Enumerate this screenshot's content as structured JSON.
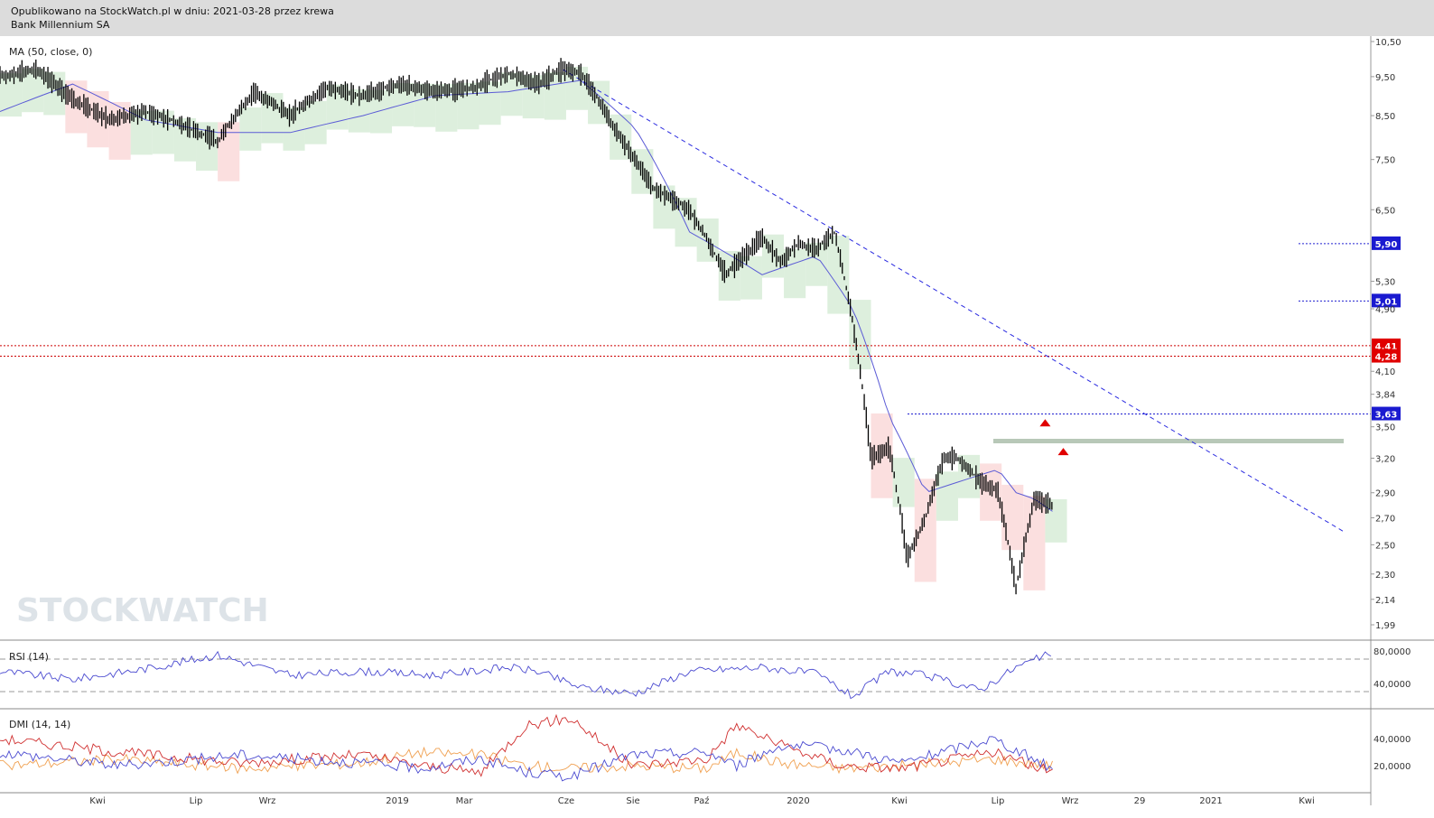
{
  "header": {
    "line1": "Opublikowano na StockWatch.pl w dniu: 2021-03-28 przez krewa",
    "line2": "Bank Millennium SA"
  },
  "watermark": "STOCKWATCH",
  "colors": {
    "price": "#000000",
    "ma": "#5b5bd6",
    "trendline": "#2a2ae0",
    "support": "#2020d0",
    "resistance": "#cc0000",
    "cloud_bull": "#cfe8cf",
    "cloud_bear": "#f9d2d2",
    "rsi": "#4a4ad0",
    "dmi_plus": "#f0a050",
    "dmi_minus": "#d03030",
    "adx": "#4a4ad0"
  },
  "chart_data": [
    {
      "type": "line",
      "panel": "price",
      "indicator_label": "MA (50, close, 0)",
      "x_labels": [
        "Kwi",
        "Lip",
        "Wrz",
        "2019",
        "Mar",
        "Cze",
        "Sie",
        "Paź",
        "2020",
        "Kwi",
        "Lip",
        "Wrz",
        "29",
        "2021",
        "Kwi"
      ],
      "y_ticks": [
        "10,50",
        "9,50",
        "8,50",
        "7,50",
        "6,50",
        "5,30",
        "4,90",
        "4,10",
        "3,84",
        "3,50",
        "3,20",
        "2,90",
        "2,70",
        "2,50",
        "2,30",
        "2,14",
        "1,99"
      ],
      "price_x": [
        0,
        10,
        20,
        30,
        40,
        50,
        60,
        70,
        80,
        90,
        100,
        110,
        120,
        130,
        140,
        148,
        155,
        160,
        170,
        180,
        190,
        200,
        210,
        215,
        220,
        225,
        230,
        235,
        240,
        245,
        250,
        255,
        260,
        264,
        270,
        275,
        280,
        285,
        290
      ],
      "price": [
        9.5,
        9.7,
        8.9,
        8.4,
        8.6,
        8.3,
        7.9,
        9.1,
        8.5,
        9.2,
        9.0,
        9.3,
        9.1,
        9.2,
        9.6,
        9.3,
        9.7,
        9.6,
        8.1,
        6.9,
        6.5,
        5.4,
        6.0,
        5.6,
        5.9,
        5.8,
        6.1,
        4.7,
        3.2,
        3.3,
        2.4,
        2.7,
        3.2,
        3.2,
        3.0,
        2.9,
        2.2,
        2.85,
        2.8
      ],
      "ma_x": [
        0,
        20,
        40,
        60,
        80,
        100,
        120,
        140,
        160,
        175,
        190,
        210,
        225,
        235,
        245,
        255,
        265,
        275,
        280,
        285,
        290
      ],
      "ma": [
        8.6,
        9.3,
        8.4,
        8.1,
        8.1,
        8.5,
        9.0,
        9.1,
        9.4,
        8.2,
        6.1,
        5.4,
        5.7,
        4.9,
        3.6,
        2.9,
        3.0,
        3.1,
        2.9,
        2.85,
        2.75
      ],
      "trendline": {
        "from": {
          "x": 155,
          "y": 9.7
        },
        "to": {
          "x": 370,
          "y": 2.6
        }
      },
      "horizontal_levels": [
        {
          "value": 5.9,
          "label": "5,90",
          "kind": "support"
        },
        {
          "value": 5.01,
          "label": "5,01",
          "kind": "support"
        },
        {
          "value": 4.41,
          "label": "4,41",
          "kind": "resistance"
        },
        {
          "value": 4.28,
          "label": "4,28",
          "kind": "resistance"
        },
        {
          "value": 3.63,
          "label": "3,63",
          "kind": "support"
        }
      ]
    },
    {
      "type": "line",
      "panel": "rsi",
      "indicator_label": "RSI (14)",
      "y_ticks": [
        "80,0000",
        "40,0000"
      ],
      "levels": [
        70,
        30
      ],
      "ylim": [
        10,
        90
      ],
      "x": [
        0,
        20,
        40,
        60,
        80,
        100,
        120,
        140,
        148,
        160,
        175,
        190,
        210,
        225,
        235,
        245,
        255,
        270,
        280,
        290
      ],
      "values": [
        55,
        45,
        58,
        75,
        50,
        55,
        50,
        60,
        55,
        35,
        28,
        55,
        60,
        52,
        24,
        55,
        50,
        32,
        60,
        78
      ]
    },
    {
      "type": "line",
      "panel": "dmi",
      "indicator_label": "DMI (14, 14)",
      "y_ticks": [
        "40,0000",
        "20,0000"
      ],
      "ylim": [
        0,
        60
      ],
      "series": [
        {
          "key": "dmi_plus",
          "x": [
            0,
            40,
            80,
            120,
            140,
            160,
            175,
            190,
            210,
            235,
            245,
            260,
            280,
            300,
            330,
            350
          ],
          "values": [
            20,
            25,
            18,
            22,
            30,
            28,
            20,
            18,
            20,
            18,
            30,
            22,
            18,
            20,
            25,
            20
          ]
        },
        {
          "key": "dmi_minus",
          "x": [
            0,
            40,
            80,
            120,
            140,
            160,
            175,
            190,
            210,
            235,
            245,
            260,
            280,
            300,
            330,
            350
          ],
          "values": [
            40,
            30,
            22,
            28,
            20,
            15,
            50,
            55,
            20,
            25,
            50,
            35,
            20,
            18,
            30,
            15
          ]
        },
        {
          "key": "adx",
          "x": [
            0,
            40,
            80,
            120,
            140,
            160,
            175,
            190,
            210,
            235,
            245,
            260,
            280,
            300,
            330,
            350
          ],
          "values": [
            30,
            20,
            28,
            22,
            18,
            25,
            15,
            12,
            28,
            30,
            20,
            35,
            32,
            22,
            40,
            18
          ]
        }
      ]
    }
  ]
}
